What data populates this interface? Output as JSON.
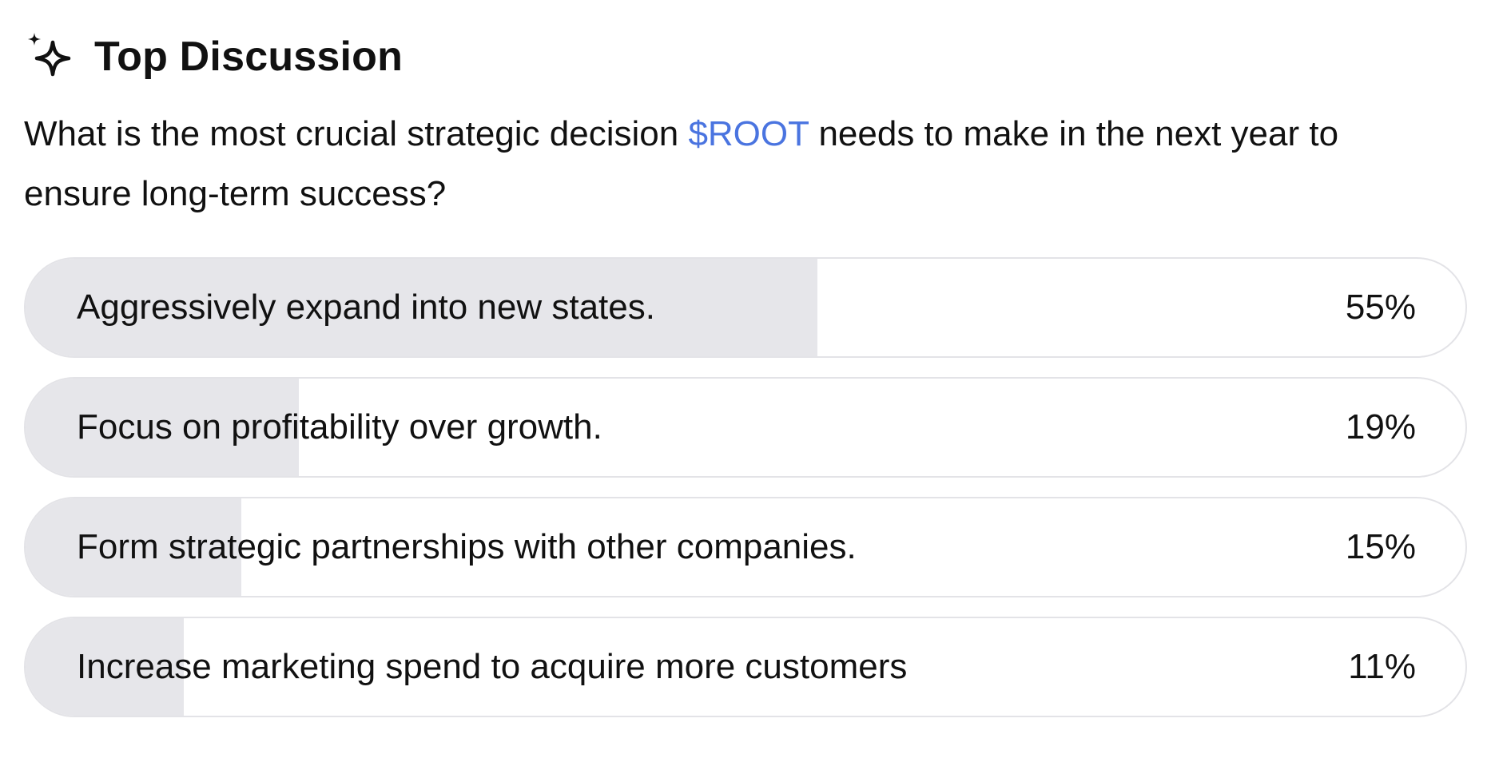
{
  "header": {
    "title": "Top Discussion",
    "icon": "sparkle-icon"
  },
  "question": {
    "prefix": "What is the most crucial strategic decision ",
    "ticker": "$ROOT",
    "suffix": " needs to make in the next year to ensure long-term success?",
    "ticker_color": "#4a74e0"
  },
  "options": [
    {
      "label": "Aggressively expand into new states.",
      "percent_text": "55%",
      "percent": 55
    },
    {
      "label": "Focus on profitability over growth.",
      "percent_text": "19%",
      "percent": 19
    },
    {
      "label": "Form strategic partnerships with other companies.",
      "percent_text": "15%",
      "percent": 15
    },
    {
      "label": "Increase marketing spend to acquire more customers",
      "percent_text": "11%",
      "percent": 11
    }
  ],
  "colors": {
    "fill": "#e6e6ea",
    "border": "#e3e3e7",
    "text": "#111111"
  }
}
